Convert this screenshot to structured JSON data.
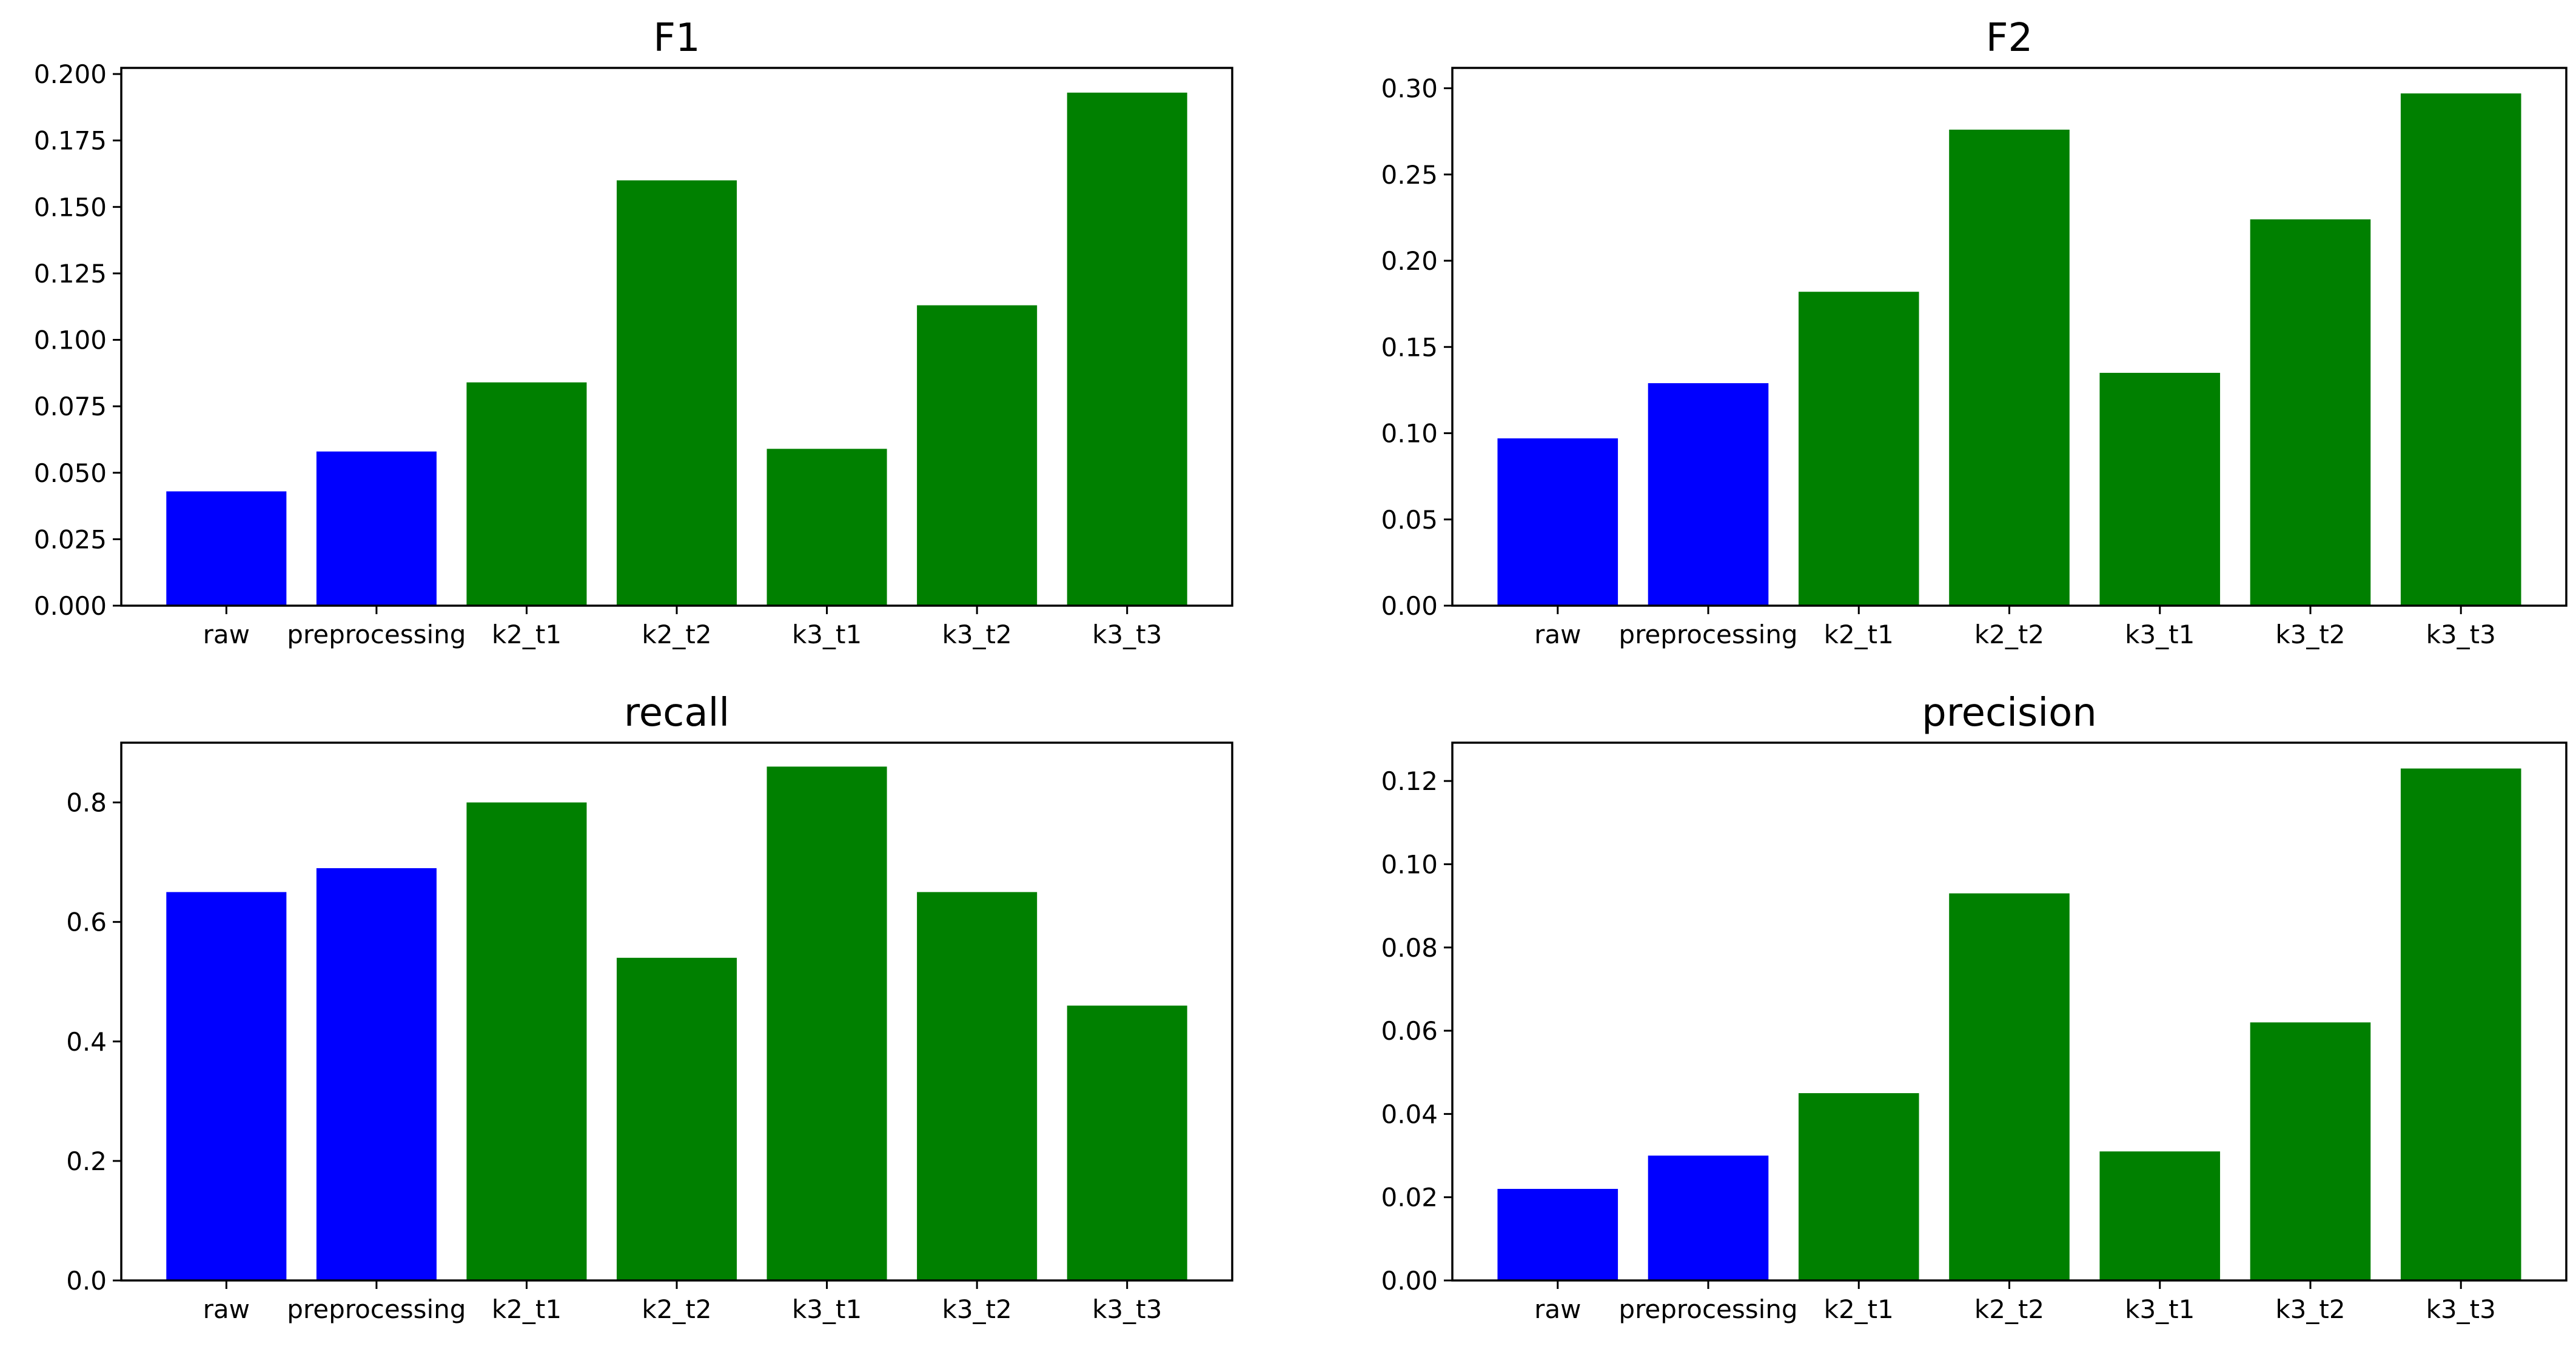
{
  "colors": {
    "baseline": "#0000ff",
    "variant": "#008000"
  },
  "chart_data": [
    {
      "type": "bar",
      "title": "F1",
      "categories": [
        "raw",
        "preprocessing",
        "k2_t1",
        "k2_t2",
        "k3_t1",
        "k3_t2",
        "k3_t3"
      ],
      "values": [
        0.043,
        0.058,
        0.084,
        0.16,
        0.059,
        0.113,
        0.193
      ],
      "bar_colors": [
        "#0000ff",
        "#0000ff",
        "#008000",
        "#008000",
        "#008000",
        "#008000",
        "#008000"
      ],
      "ylim": [
        0,
        0.2023
      ],
      "yticks": [
        0,
        0.025,
        0.05,
        0.075,
        0.1,
        0.125,
        0.15,
        0.175,
        0.2
      ],
      "ytick_labels": [
        "0.000",
        "0.025",
        "0.050",
        "0.075",
        "0.100",
        "0.125",
        "0.150",
        "0.175",
        "0.200"
      ],
      "xlabel": "",
      "ylabel": ""
    },
    {
      "type": "bar",
      "title": "F2",
      "categories": [
        "raw",
        "preprocessing",
        "k2_t1",
        "k2_t2",
        "k3_t1",
        "k3_t2",
        "k3_t3"
      ],
      "values": [
        0.097,
        0.129,
        0.182,
        0.276,
        0.135,
        0.224,
        0.297
      ],
      "bar_colors": [
        "#0000ff",
        "#0000ff",
        "#008000",
        "#008000",
        "#008000",
        "#008000",
        "#008000"
      ],
      "ylim": [
        0,
        0.3118
      ],
      "yticks": [
        0,
        0.05,
        0.1,
        0.15,
        0.2,
        0.25,
        0.3
      ],
      "ytick_labels": [
        "0.00",
        "0.05",
        "0.10",
        "0.15",
        "0.20",
        "0.25",
        "0.30"
      ],
      "xlabel": "",
      "ylabel": ""
    },
    {
      "type": "bar",
      "title": "recall",
      "categories": [
        "raw",
        "preprocessing",
        "k2_t1",
        "k2_t2",
        "k3_t1",
        "k3_t2",
        "k3_t3"
      ],
      "values": [
        0.65,
        0.69,
        0.8,
        0.54,
        0.86,
        0.65,
        0.46
      ],
      "bar_colors": [
        "#0000ff",
        "#0000ff",
        "#008000",
        "#008000",
        "#008000",
        "#008000",
        "#008000"
      ],
      "ylim": [
        0,
        0.9
      ],
      "yticks": [
        0,
        0.2,
        0.4,
        0.6,
        0.8
      ],
      "ytick_labels": [
        "0.0",
        "0.2",
        "0.4",
        "0.6",
        "0.8"
      ],
      "xlabel": "",
      "ylabel": ""
    },
    {
      "type": "bar",
      "title": "precision",
      "categories": [
        "raw",
        "preprocessing",
        "k2_t1",
        "k2_t2",
        "k3_t1",
        "k3_t2",
        "k3_t3"
      ],
      "values": [
        0.022,
        0.03,
        0.045,
        0.093,
        0.031,
        0.062,
        0.123
      ],
      "bar_colors": [
        "#0000ff",
        "#0000ff",
        "#008000",
        "#008000",
        "#008000",
        "#008000",
        "#008000"
      ],
      "ylim": [
        0,
        0.1292
      ],
      "yticks": [
        0,
        0.02,
        0.04,
        0.06,
        0.08,
        0.1,
        0.12
      ],
      "ytick_labels": [
        "0.00",
        "0.02",
        "0.04",
        "0.06",
        "0.08",
        "0.10",
        "0.12"
      ],
      "xlabel": "",
      "ylabel": ""
    }
  ]
}
